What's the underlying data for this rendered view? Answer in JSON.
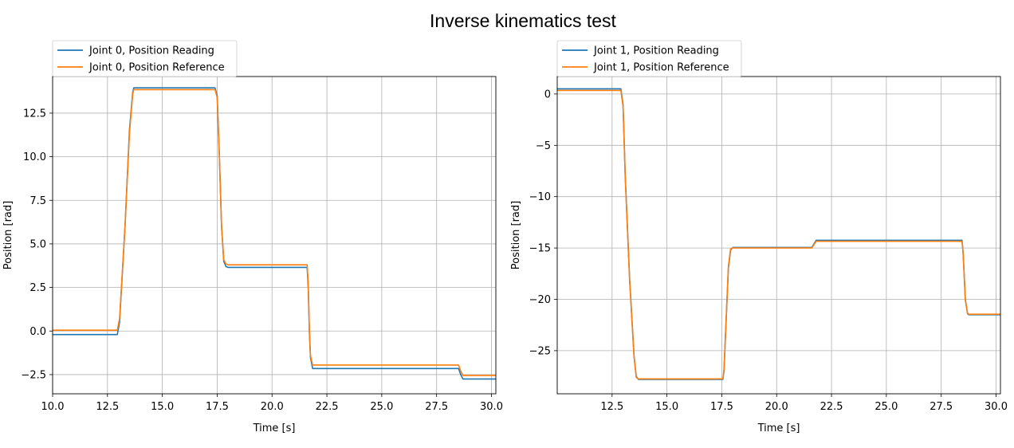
{
  "figure": {
    "title": "Inverse kinematics test"
  },
  "colors": {
    "series_blue": "#1f77b4",
    "series_orange": "#ff7f0e",
    "grid": "#b0b0b0",
    "frame": "#000000"
  },
  "chart_data": [
    {
      "type": "line",
      "xlabel": "Time [s]",
      "ylabel": "Position [rad]",
      "xlim": [
        10.0,
        30.2
      ],
      "ylim": [
        -3.6,
        14.6
      ],
      "xticks": [
        10.0,
        12.5,
        15.0,
        17.5,
        20.0,
        22.5,
        25.0,
        27.5,
        30.0
      ],
      "xtick_labels": [
        "10.0",
        "12.5",
        "15.0",
        "17.5",
        "20.0",
        "22.5",
        "25.0",
        "27.5",
        "30.0"
      ],
      "yticks": [
        -2.5,
        0.0,
        2.5,
        5.0,
        7.5,
        10.0,
        12.5
      ],
      "ytick_labels": [
        "−2.5",
        "0.0",
        "2.5",
        "5.0",
        "7.5",
        "10.0",
        "12.5"
      ],
      "grid": true,
      "legend_position": "above plot, left",
      "series": [
        {
          "name": "Joint 0, Position Reading",
          "color": "#1f77b4",
          "x": [
            10.0,
            12.95,
            13.05,
            13.3,
            13.5,
            13.65,
            13.7,
            17.4,
            17.5,
            17.6,
            17.7,
            17.8,
            17.9,
            18.0,
            21.6,
            21.65,
            21.7,
            21.75,
            21.85,
            28.5,
            28.6,
            28.7,
            30.2
          ],
          "y": [
            -0.2,
            -0.2,
            0.5,
            6.0,
            11.5,
            13.7,
            13.95,
            13.95,
            13.5,
            10.0,
            6.0,
            4.0,
            3.7,
            3.65,
            3.65,
            2.5,
            0.0,
            -1.5,
            -2.15,
            -2.15,
            -2.5,
            -2.75,
            -2.75
          ]
        },
        {
          "name": "Joint 0, Position Reference",
          "color": "#ff7f0e",
          "x": [
            10.0,
            12.95,
            13.05,
            13.3,
            13.5,
            13.65,
            13.7,
            17.4,
            17.5,
            17.6,
            17.7,
            17.8,
            17.9,
            18.0,
            21.6,
            21.65,
            21.7,
            21.75,
            21.85,
            28.5,
            28.6,
            28.7,
            30.2
          ],
          "y": [
            0.05,
            0.05,
            0.7,
            6.0,
            11.3,
            13.6,
            13.85,
            13.85,
            13.4,
            10.0,
            6.0,
            4.1,
            3.85,
            3.8,
            3.8,
            2.7,
            0.2,
            -1.4,
            -1.95,
            -1.95,
            -2.3,
            -2.55,
            -2.55
          ]
        }
      ]
    },
    {
      "type": "line",
      "xlabel": "Time [s]",
      "ylabel": "Position [rad]",
      "xlim": [
        10.0,
        30.2
      ],
      "ylim": [
        -29.2,
        1.7
      ],
      "xticks": [
        12.5,
        15.0,
        17.5,
        20.0,
        22.5,
        25.0,
        27.5,
        30.0
      ],
      "xtick_labels": [
        "12.5",
        "15.0",
        "17.5",
        "20.0",
        "22.5",
        "25.0",
        "27.5",
        "30.0"
      ],
      "yticks": [
        -25,
        -20,
        -15,
        -10,
        -5,
        0
      ],
      "ytick_labels": [
        "−25",
        "−20",
        "−15",
        "−10",
        "−5",
        "0"
      ],
      "grid": true,
      "legend_position": "above plot, left",
      "series": [
        {
          "name": "Joint 1, Position Reading",
          "color": "#1f77b4",
          "x": [
            10.0,
            12.9,
            13.0,
            13.1,
            13.3,
            13.5,
            13.6,
            13.7,
            17.55,
            17.6,
            17.7,
            17.8,
            17.9,
            18.0,
            21.6,
            21.8,
            28.45,
            28.5,
            28.6,
            28.7,
            28.75,
            30.2
          ],
          "y": [
            0.5,
            0.5,
            -1.0,
            -8.0,
            -18.0,
            -25.5,
            -27.5,
            -27.8,
            -27.8,
            -27.0,
            -22.0,
            -17.0,
            -15.2,
            -14.95,
            -14.95,
            -14.25,
            -14.25,
            -15.5,
            -20.0,
            -21.4,
            -21.5,
            -21.5
          ]
        },
        {
          "name": "Joint 1, Position Reference",
          "color": "#ff7f0e",
          "x": [
            10.0,
            12.9,
            13.0,
            13.1,
            13.3,
            13.5,
            13.6,
            13.7,
            17.55,
            17.6,
            17.7,
            17.8,
            17.9,
            18.0,
            21.6,
            21.8,
            28.45,
            28.5,
            28.6,
            28.7,
            28.75,
            30.2
          ],
          "y": [
            0.35,
            0.35,
            -1.2,
            -8.2,
            -18.2,
            -25.6,
            -27.6,
            -27.75,
            -27.75,
            -26.8,
            -21.8,
            -16.8,
            -15.1,
            -15.0,
            -15.0,
            -14.35,
            -14.35,
            -15.6,
            -20.1,
            -21.35,
            -21.45,
            -21.45
          ]
        }
      ]
    }
  ]
}
